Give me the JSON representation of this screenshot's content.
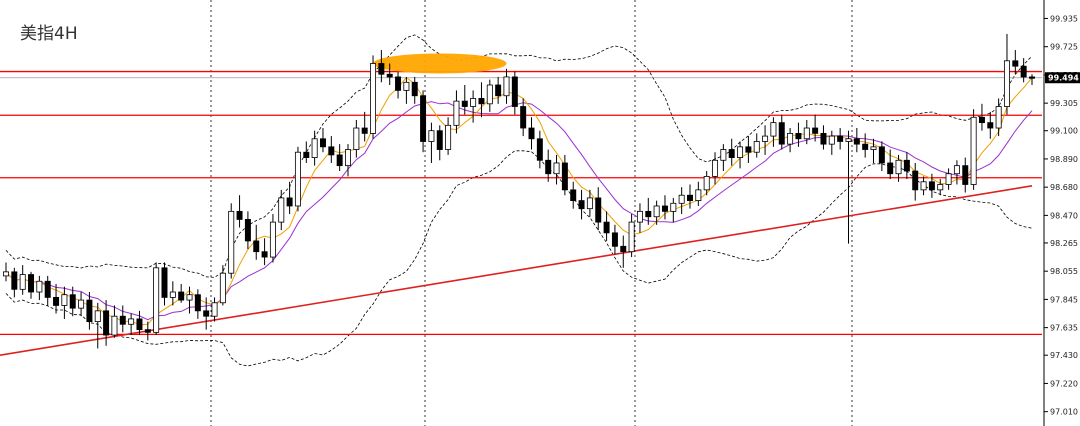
{
  "chart_data": {
    "type": "candlestick",
    "title": "美指4H",
    "current_price": "99.494",
    "ylim": [
      97.0,
      100.05
    ],
    "y_ticks": [
      "99.935",
      "99.725",
      "99.515",
      "99.305",
      "99.100",
      "98.890",
      "98.680",
      "98.470",
      "98.265",
      "98.055",
      "97.845",
      "97.635",
      "97.430",
      "97.220",
      "97.010"
    ],
    "horizontal_lines": [
      99.54,
      99.215,
      98.75,
      97.585
    ],
    "trendline": {
      "from": {
        "bar": 0,
        "price": 97.43
      },
      "to": {
        "bar": 123,
        "price": 98.69
      }
    },
    "highlight": {
      "from_bar": 44,
      "to_bar": 60,
      "price": 99.6
    },
    "colors": {
      "horizontal": "#ff0000",
      "trend": "#e02020",
      "ma_fast": "#f0a000",
      "ma_slow": "#9b30d0",
      "bands": "#000000",
      "highlight": "#ffa500"
    },
    "candles": [
      [
        98.02,
        98.12,
        97.98,
        98.05
      ],
      [
        98.05,
        98.08,
        97.86,
        97.92
      ],
      [
        97.92,
        98.1,
        97.88,
        98.03
      ],
      [
        98.03,
        98.05,
        97.85,
        97.9
      ],
      [
        97.9,
        98.02,
        97.84,
        97.98
      ],
      [
        97.98,
        98.02,
        97.8,
        97.86
      ],
      [
        97.86,
        97.96,
        97.74,
        97.8
      ],
      [
        97.8,
        97.94,
        97.7,
        97.88
      ],
      [
        97.88,
        97.94,
        97.72,
        97.78
      ],
      [
        97.78,
        97.9,
        97.72,
        97.84
      ],
      [
        97.84,
        97.9,
        97.62,
        97.68
      ],
      [
        97.68,
        97.82,
        97.48,
        97.76
      ],
      [
        97.76,
        97.84,
        97.5,
        97.58
      ],
      [
        97.58,
        97.8,
        97.56,
        97.72
      ],
      [
        97.72,
        97.8,
        97.6,
        97.66
      ],
      [
        97.66,
        97.74,
        97.58,
        97.7
      ],
      [
        97.7,
        97.76,
        97.58,
        97.62
      ],
      [
        97.62,
        97.68,
        97.54,
        97.6
      ],
      [
        97.6,
        98.12,
        97.58,
        98.08
      ],
      [
        98.08,
        98.12,
        97.8,
        97.86
      ],
      [
        97.86,
        97.98,
        97.8,
        97.9
      ],
      [
        97.9,
        97.96,
        97.82,
        97.84
      ],
      [
        97.84,
        97.94,
        97.74,
        97.88
      ],
      [
        97.88,
        97.92,
        97.7,
        97.76
      ],
      [
        97.76,
        97.86,
        97.62,
        97.72
      ],
      [
        97.72,
        97.86,
        97.68,
        97.82
      ],
      [
        97.82,
        98.1,
        97.8,
        98.04
      ],
      [
        98.04,
        98.56,
        98.0,
        98.5
      ],
      [
        98.5,
        98.62,
        98.38,
        98.44
      ],
      [
        98.44,
        98.5,
        98.22,
        98.28
      ],
      [
        98.28,
        98.4,
        98.14,
        98.2
      ],
      [
        98.2,
        98.3,
        98.1,
        98.16
      ],
      [
        98.16,
        98.48,
        98.12,
        98.42
      ],
      [
        98.42,
        98.66,
        98.36,
        98.6
      ],
      [
        98.6,
        98.72,
        98.48,
        98.54
      ],
      [
        98.54,
        98.98,
        98.5,
        98.94
      ],
      [
        98.94,
        99.02,
        98.86,
        98.9
      ],
      [
        98.9,
        99.1,
        98.84,
        99.04
      ],
      [
        99.04,
        99.12,
        98.94,
        98.98
      ],
      [
        98.98,
        99.06,
        98.86,
        98.92
      ],
      [
        98.92,
        99.0,
        98.8,
        98.84
      ],
      [
        98.84,
        99.0,
        98.76,
        98.96
      ],
      [
        98.96,
        99.18,
        98.9,
        99.12
      ],
      [
        99.12,
        99.24,
        99.02,
        99.08
      ],
      [
        99.08,
        99.66,
        99.04,
        99.6
      ],
      [
        99.6,
        99.7,
        99.46,
        99.52
      ],
      [
        99.52,
        99.6,
        99.44,
        99.5
      ],
      [
        99.5,
        99.54,
        99.34,
        99.4
      ],
      [
        99.4,
        99.5,
        99.3,
        99.46
      ],
      [
        99.46,
        99.5,
        99.3,
        99.36
      ],
      [
        99.36,
        99.4,
        98.94,
        99.02
      ],
      [
        99.02,
        99.16,
        98.86,
        99.1
      ],
      [
        99.1,
        99.14,
        98.88,
        98.96
      ],
      [
        98.96,
        99.2,
        98.92,
        99.14
      ],
      [
        99.14,
        99.4,
        99.08,
        99.32
      ],
      [
        99.32,
        99.44,
        99.22,
        99.28
      ],
      [
        99.28,
        99.4,
        99.16,
        99.34
      ],
      [
        99.34,
        99.46,
        99.2,
        99.3
      ],
      [
        99.3,
        99.48,
        99.24,
        99.44
      ],
      [
        99.44,
        99.5,
        99.3,
        99.36
      ],
      [
        99.36,
        99.56,
        99.3,
        99.5
      ],
      [
        99.5,
        99.54,
        99.22,
        99.28
      ],
      [
        99.28,
        99.34,
        99.06,
        99.12
      ],
      [
        99.12,
        99.2,
        98.96,
        99.04
      ],
      [
        99.04,
        99.1,
        98.82,
        98.88
      ],
      [
        98.88,
        98.96,
        98.72,
        98.78
      ],
      [
        98.78,
        98.92,
        98.7,
        98.86
      ],
      [
        98.86,
        98.92,
        98.62,
        98.66
      ],
      [
        98.66,
        98.72,
        98.52,
        98.58
      ],
      [
        98.58,
        98.66,
        98.44,
        98.52
      ],
      [
        98.52,
        98.66,
        98.46,
        98.6
      ],
      [
        98.6,
        98.68,
        98.36,
        98.42
      ],
      [
        98.42,
        98.5,
        98.28,
        98.34
      ],
      [
        98.34,
        98.4,
        98.18,
        98.24
      ],
      [
        98.24,
        98.32,
        98.08,
        98.2
      ],
      [
        98.2,
        98.48,
        98.16,
        98.42
      ],
      [
        98.42,
        98.56,
        98.34,
        98.5
      ],
      [
        98.5,
        98.6,
        98.4,
        98.46
      ],
      [
        98.46,
        98.58,
        98.4,
        98.54
      ],
      [
        98.54,
        98.62,
        98.44,
        98.5
      ],
      [
        98.5,
        98.6,
        98.42,
        98.56
      ],
      [
        98.56,
        98.68,
        98.48,
        98.62
      ],
      [
        98.62,
        98.7,
        98.52,
        98.58
      ],
      [
        98.58,
        98.72,
        98.54,
        98.66
      ],
      [
        98.66,
        98.8,
        98.62,
        98.76
      ],
      [
        98.76,
        98.94,
        98.7,
        98.88
      ],
      [
        98.88,
        99.0,
        98.8,
        98.96
      ],
      [
        98.96,
        99.04,
        98.84,
        98.9
      ],
      [
        98.9,
        99.02,
        98.82,
        98.98
      ],
      [
        98.98,
        99.06,
        98.86,
        98.94
      ],
      [
        98.94,
        99.08,
        98.9,
        99.02
      ],
      [
        99.02,
        99.14,
        98.92,
        99.06
      ],
      [
        99.06,
        99.2,
        98.98,
        99.16
      ],
      [
        99.16,
        99.22,
        98.96,
        99.0
      ],
      [
        99.0,
        99.12,
        98.94,
        99.08
      ],
      [
        99.08,
        99.16,
        98.98,
        99.04
      ],
      [
        99.04,
        99.18,
        99.0,
        99.12
      ],
      [
        99.12,
        99.22,
        99.02,
        99.08
      ],
      [
        99.08,
        99.14,
        98.96,
        99.0
      ],
      [
        99.0,
        99.1,
        98.92,
        99.06
      ],
      [
        99.06,
        99.12,
        98.96,
        99.02
      ],
      [
        99.02,
        99.1,
        98.26,
        99.04
      ],
      [
        99.04,
        99.12,
        98.94,
        99.0
      ],
      [
        99.0,
        99.08,
        98.9,
        98.96
      ],
      [
        98.96,
        99.04,
        98.86,
        98.98
      ],
      [
        98.98,
        99.02,
        98.8,
        98.86
      ],
      [
        98.86,
        98.96,
        98.74,
        98.78
      ],
      [
        98.78,
        98.92,
        98.72,
        98.88
      ],
      [
        98.88,
        98.94,
        98.74,
        98.8
      ],
      [
        98.8,
        98.86,
        98.58,
        98.66
      ],
      [
        98.66,
        98.76,
        98.62,
        98.72
      ],
      [
        98.72,
        98.78,
        98.6,
        98.66
      ],
      [
        98.66,
        98.74,
        98.62,
        98.7
      ],
      [
        98.7,
        98.82,
        98.66,
        98.78
      ],
      [
        98.78,
        98.88,
        98.7,
        98.84
      ],
      [
        98.84,
        98.9,
        98.64,
        98.7
      ],
      [
        98.7,
        99.26,
        98.66,
        99.2
      ],
      [
        99.2,
        99.3,
        99.1,
        99.16
      ],
      [
        99.16,
        99.24,
        99.04,
        99.12
      ],
      [
        99.12,
        99.34,
        99.06,
        99.28
      ],
      [
        99.28,
        99.82,
        99.22,
        99.62
      ],
      [
        99.62,
        99.7,
        99.52,
        99.58
      ],
      [
        99.58,
        99.64,
        99.46,
        99.5
      ],
      [
        99.5,
        99.52,
        99.44,
        99.49
      ]
    ]
  }
}
